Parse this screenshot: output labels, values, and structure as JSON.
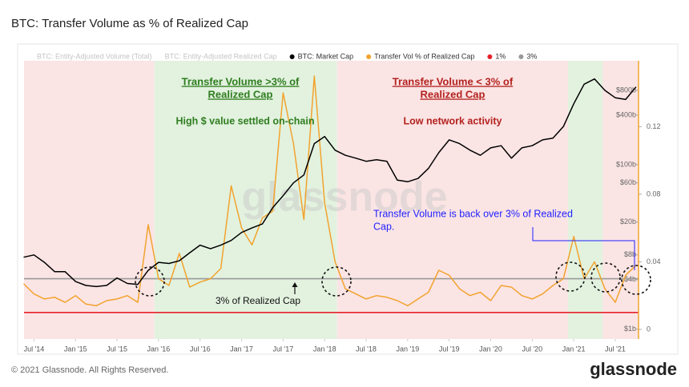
{
  "title": "BTC: Transfer Volume as % of Realized Cap",
  "footer": "© 2021 Glassnode. All Rights Reserved.",
  "logo": "glassnode",
  "chart_data": {
    "type": "line",
    "watermark": "glassnode",
    "xlim": [
      2014.38,
      2021.78
    ],
    "xticks": [
      {
        "value": 2014.5,
        "label": "Jul '14"
      },
      {
        "value": 2015.0,
        "label": "Jan '15"
      },
      {
        "value": 2015.5,
        "label": "Jul '15"
      },
      {
        "value": 2016.0,
        "label": "Jan '16"
      },
      {
        "value": 2016.5,
        "label": "Jul '16"
      },
      {
        "value": 2017.0,
        "label": "Jan '17"
      },
      {
        "value": 2017.5,
        "label": "Jul '17"
      },
      {
        "value": 2018.0,
        "label": "Jan '18"
      },
      {
        "value": 2018.5,
        "label": "Jul '18"
      },
      {
        "value": 2019.0,
        "label": "Jan '19"
      },
      {
        "value": 2019.5,
        "label": "Jul '19"
      },
      {
        "value": 2020.0,
        "label": "Jan '20"
      },
      {
        "value": 2020.5,
        "label": "Jul '20"
      },
      {
        "value": 2021.0,
        "label": "Jan '21"
      },
      {
        "value": 2021.5,
        "label": "Jul '21"
      }
    ],
    "ylim": [
      760000000.0,
      1830000000000.0
    ],
    "log_y": true,
    "yticks": [
      {
        "value": 1000000000.0,
        "label": "$1b"
      },
      {
        "value": 4000000000.0,
        "label": "$4b"
      },
      {
        "value": 8000000000.0,
        "label": "$8b"
      },
      {
        "value": 20000000000.0,
        "label": "$20b"
      },
      {
        "value": 60000000000.0,
        "label": "$60b"
      },
      {
        "value": 100000000000.0,
        "label": "$100b"
      },
      {
        "value": 400000000000.0,
        "label": "$400b"
      },
      {
        "value": 800000000000.0,
        "label": "$800b"
      }
    ],
    "y2lim": [
      -0.0057,
      0.159
    ],
    "y2ticks": [
      0,
      0.04,
      0.08,
      0.12
    ],
    "x": [
      2014.375,
      2014.5,
      2014.625,
      2014.75,
      2014.875,
      2015.0,
      2015.125,
      2015.25,
      2015.375,
      2015.5,
      2015.625,
      2015.75,
      2015.875,
      2016.0,
      2016.125,
      2016.25,
      2016.375,
      2016.5,
      2016.625,
      2016.75,
      2016.875,
      2017.0,
      2017.125,
      2017.25,
      2017.375,
      2017.5,
      2017.625,
      2017.75,
      2017.875,
      2018.0,
      2018.125,
      2018.25,
      2018.375,
      2018.5,
      2018.625,
      2018.75,
      2018.875,
      2019.0,
      2019.125,
      2019.25,
      2019.375,
      2019.5,
      2019.625,
      2019.75,
      2019.875,
      2020.0,
      2020.125,
      2020.25,
      2020.375,
      2020.5,
      2020.625,
      2020.75,
      2020.875,
      2021.0,
      2021.125,
      2021.25,
      2021.375,
      2021.5,
      2021.625,
      2021.75
    ],
    "series": [
      {
        "name": "BTC: Market Cap",
        "color": "#000000",
        "axis": "y",
        "values": [
          7500000000.0,
          8000000000.0,
          6500000000.0,
          5000000000.0,
          5000000000.0,
          3800000000.0,
          3400000000.0,
          3300000000.0,
          3400000000.0,
          4200000000.0,
          3600000000.0,
          3500000000.0,
          5200000000.0,
          6500000000.0,
          6300000000.0,
          6800000000.0,
          8500000000.0,
          10500000000.0,
          9500000000.0,
          10500000000.0,
          12000000000.0,
          15000000000.0,
          17000000000.0,
          19000000000.0,
          30000000000.0,
          42000000000.0,
          60000000000.0,
          75000000000.0,
          180000000000.0,
          220000000000.0,
          150000000000.0,
          130000000000.0,
          120000000000.0,
          110000000000.0,
          115000000000.0,
          110000000000.0,
          65000000000.0,
          62000000000.0,
          68000000000.0,
          90000000000.0,
          140000000000.0,
          200000000000.0,
          180000000000.0,
          150000000000.0,
          130000000000.0,
          160000000000.0,
          170000000000.0,
          120000000000.0,
          160000000000.0,
          170000000000.0,
          200000000000.0,
          210000000000.0,
          290000000000.0,
          550000000000.0,
          950000000000.0,
          1100000000000.0,
          800000000000.0,
          650000000000.0,
          620000000000.0,
          880000000000.0
        ]
      },
      {
        "name": "Transfer Vol % of Realized Cap",
        "color": "#f2a32e",
        "axis": "y2",
        "values": [
          0.027,
          0.021,
          0.018,
          0.019,
          0.016,
          0.02,
          0.015,
          0.014,
          0.017,
          0.018,
          0.02,
          0.016,
          0.062,
          0.03,
          0.026,
          0.045,
          0.025,
          0.028,
          0.03,
          0.036,
          0.085,
          0.06,
          0.05,
          0.066,
          0.07,
          0.14,
          0.11,
          0.065,
          0.15,
          0.075,
          0.04,
          0.024,
          0.021,
          0.018,
          0.02,
          0.019,
          0.017,
          0.014,
          0.018,
          0.022,
          0.035,
          0.032,
          0.024,
          0.02,
          0.022,
          0.017,
          0.026,
          0.025,
          0.02,
          0.018,
          0.021,
          0.026,
          0.03,
          0.055,
          0.03,
          0.04,
          0.024,
          0.016,
          0.032,
          0.038
        ]
      }
    ],
    "hlines": [
      {
        "name": "1%",
        "value": 0.01,
        "color": "#e8202a"
      },
      {
        "name": "3%",
        "value": 0.03,
        "color": "#999999"
      }
    ],
    "inactive_series": [
      {
        "name": "BTC: Entity-Adjusted Volume (Total)",
        "color": "#cccccc"
      },
      {
        "name": "BTC: Entity-Adjusted Realized Cap",
        "color": "#cccccc"
      }
    ],
    "regions": [
      {
        "start": 2014.38,
        "end": 2015.95,
        "color": "#fbe4e4"
      },
      {
        "start": 2015.95,
        "end": 2018.15,
        "color": "#e2f2df"
      },
      {
        "start": 2018.15,
        "end": 2020.93,
        "color": "#fbe4e4"
      },
      {
        "start": 2020.93,
        "end": 2021.35,
        "color": "#e2f2df"
      },
      {
        "start": 2021.35,
        "end": 2021.78,
        "color": "#fbe4e4"
      }
    ],
    "annotations": [
      {
        "lines": [
          "Transfer Volume >3% of",
          "Realized Cap"
        ],
        "color": "#2f7d1f"
      },
      {
        "lines": [
          "High $ value settled on-chain"
        ],
        "color": "#2f7d1f"
      },
      {
        "lines": [
          "Transfer Volume < 3% of",
          "Realized Cap"
        ],
        "color": "#b3221f"
      },
      {
        "lines": [
          "Low network activity"
        ],
        "color": "#b3221f"
      },
      {
        "lines": [
          "Transfer Volume is back over 3% of Realized",
          "Cap."
        ],
        "color": "#1f1fff"
      },
      {
        "lines": [
          "3% of Realized Cap"
        ],
        "color": "#111111"
      }
    ]
  }
}
